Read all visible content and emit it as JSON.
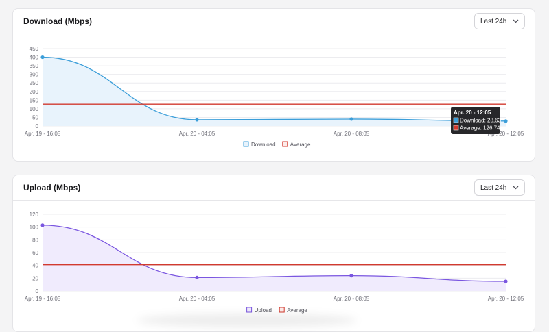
{
  "colors": {
    "download": "#3b9ed9",
    "download_fill": "#e8f3fc",
    "upload": "#7a56e0",
    "upload_fill": "#f0ebfd",
    "average": "#d23a2f",
    "tooltip_bg": "#27272a"
  },
  "download_card": {
    "title": "Download (Mbps)",
    "range": "Last 24h",
    "chevron_icon": "chevron-down-icon"
  },
  "upload_card": {
    "title": "Upload (Mbps)",
    "range": "Last 24h",
    "chevron_icon": "chevron-down-icon"
  },
  "chart_data": [
    {
      "type": "line",
      "categories": [
        "Apr. 19 - 16:05",
        "Apr. 20 - 04:05",
        "Apr. 20 - 08:05",
        "Apr. 20 - 12:05"
      ],
      "series": [
        {
          "name": "Download",
          "values": [
            400,
            36,
            40,
            28.63
          ]
        },
        {
          "name": "Average",
          "values": [
            126.74,
            126.74,
            126.74,
            126.74
          ]
        }
      ],
      "ylim": [
        0,
        450
      ],
      "yticks": [
        0,
        50,
        100,
        150,
        200,
        250,
        300,
        350,
        400,
        450
      ],
      "grid": true,
      "legend": "bottom-center",
      "tooltip": {
        "title": "Apr. 20 - 12:05",
        "lines": [
          "Download: 28,63",
          "Average: 126,74"
        ]
      }
    },
    {
      "type": "line",
      "categories": [
        "Apr. 19 - 16:05",
        "Apr. 20 - 04:05",
        "Apr. 20 - 08:05",
        "Apr. 20 - 12:05"
      ],
      "series": [
        {
          "name": "Upload",
          "values": [
            103,
            21,
            24,
            15
          ]
        },
        {
          "name": "Average",
          "values": [
            41,
            41,
            41,
            41
          ]
        }
      ],
      "ylim": [
        0,
        120
      ],
      "yticks": [
        0,
        20,
        40,
        60,
        80,
        100,
        120
      ],
      "grid": true,
      "legend": "bottom-center"
    }
  ]
}
